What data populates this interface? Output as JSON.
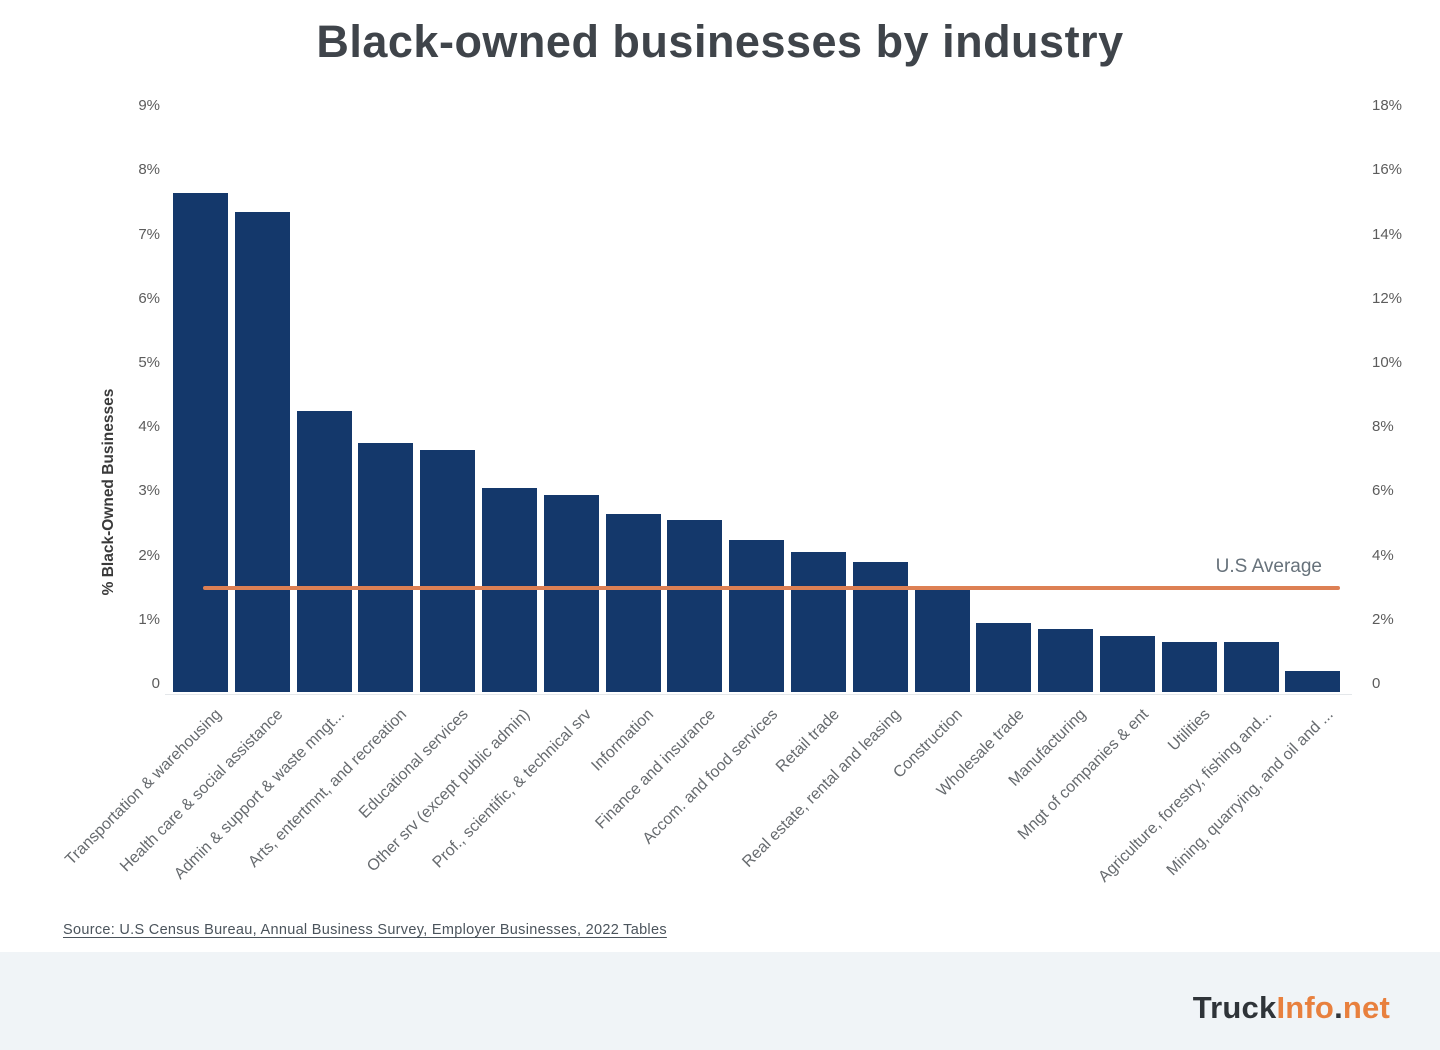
{
  "title": "Black-owned businesses by industry",
  "chart_data": {
    "type": "bar",
    "title": "Black-owned businesses by industry",
    "ylabel": "% Black-Owned Businesses",
    "left_axis": {
      "ticks": [
        "0",
        "1%",
        "2%",
        "3%",
        "4%",
        "5%",
        "6%",
        "7%",
        "8%",
        "9%"
      ],
      "ylim": [
        0,
        9
      ]
    },
    "right_axis": {
      "ticks": [
        "0",
        "2%",
        "4%",
        "6%",
        "8%",
        "10%",
        "12%",
        "14%",
        "16%",
        "18%"
      ],
      "ylim": [
        0,
        18
      ]
    },
    "grid": false,
    "legend": "none",
    "bar_color": "#14386b",
    "categories": [
      "Transportation & warehousing",
      "Health care & social assistance",
      "Admin & support & waste mngt...",
      "Arts, entertmnt, and recreation",
      "Educational services",
      "Other srv (except public admin)",
      "Prof., scientific, & technical srv",
      "Information",
      "Finance and insurance",
      "Accom. and food services",
      "Retail trade",
      "Real estate, rental and leasing",
      "Construction",
      "Wholesale trade",
      "Manufacturing",
      "Mngt of companies & ent",
      "Utilities",
      "Agriculture, forestry, fishing and...",
      "Mining, quarrying, and oil and ..."
    ],
    "values": [
      7.65,
      7.35,
      4.25,
      3.75,
      3.65,
      3.05,
      2.95,
      2.65,
      2.55,
      2.25,
      2.05,
      1.9,
      1.5,
      0.95,
      0.85,
      0.75,
      0.65,
      0.65,
      0.2
    ],
    "reference_line": {
      "label": "U.S Average",
      "value": 1.5,
      "color": "#dd8054"
    }
  },
  "source": {
    "text": "Source: U.S Census Bureau, Annual Business Survey, Employer Businesses, 2022 Tables"
  },
  "footer": {
    "brand_part1": "Truck",
    "brand_part2": "Info",
    "brand_dot": ".",
    "brand_part3": "net"
  }
}
